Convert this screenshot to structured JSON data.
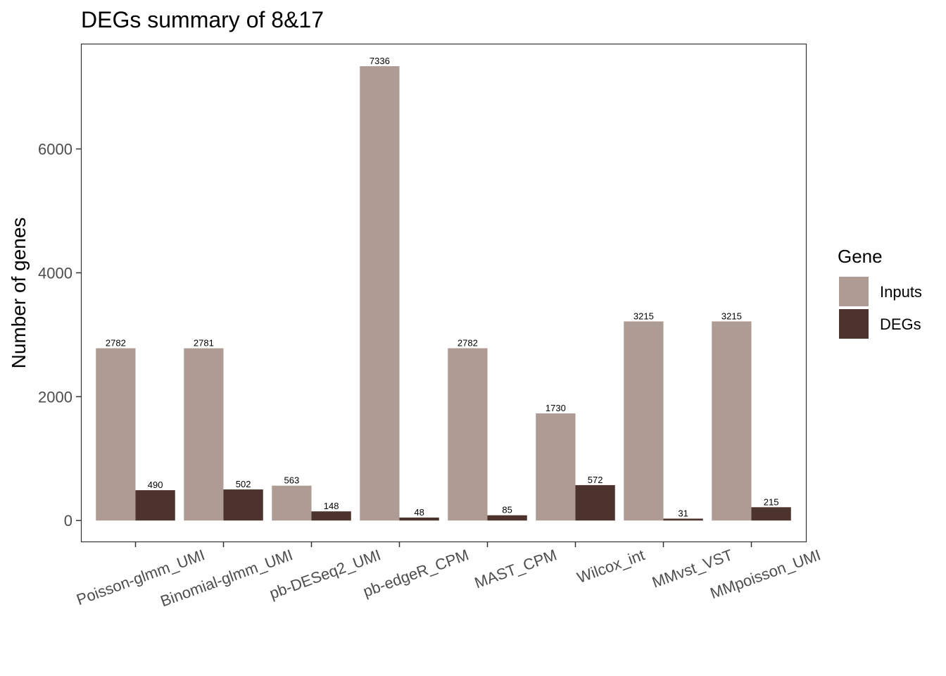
{
  "chart_data": {
    "type": "bar",
    "title": "DEGs summary of  8&17",
    "xlabel": "",
    "ylabel": "Number of genes",
    "categories": [
      "Poisson-glmm_UMI",
      "Binomial-glmm_UMI",
      "pb-DESeq2_UMI",
      "pb-edgeR_CPM",
      "MAST_CPM",
      "Wilcox_int",
      "MMvst_VST",
      "MMpoisson_UMI"
    ],
    "series": [
      {
        "name": "Inputs",
        "color": "#ae9b93",
        "values": [
          2782,
          2781,
          563,
          7336,
          2782,
          1730,
          3215,
          3215
        ]
      },
      {
        "name": "DEGs",
        "color": "#4d332d",
        "values": [
          490,
          502,
          148,
          48,
          85,
          572,
          31,
          215
        ]
      }
    ],
    "ylim": [
      -350,
      7700
    ],
    "yticks": [
      0,
      2000,
      4000,
      6000
    ],
    "grid": false,
    "legend": {
      "title": "Gene",
      "placement": "right"
    }
  }
}
